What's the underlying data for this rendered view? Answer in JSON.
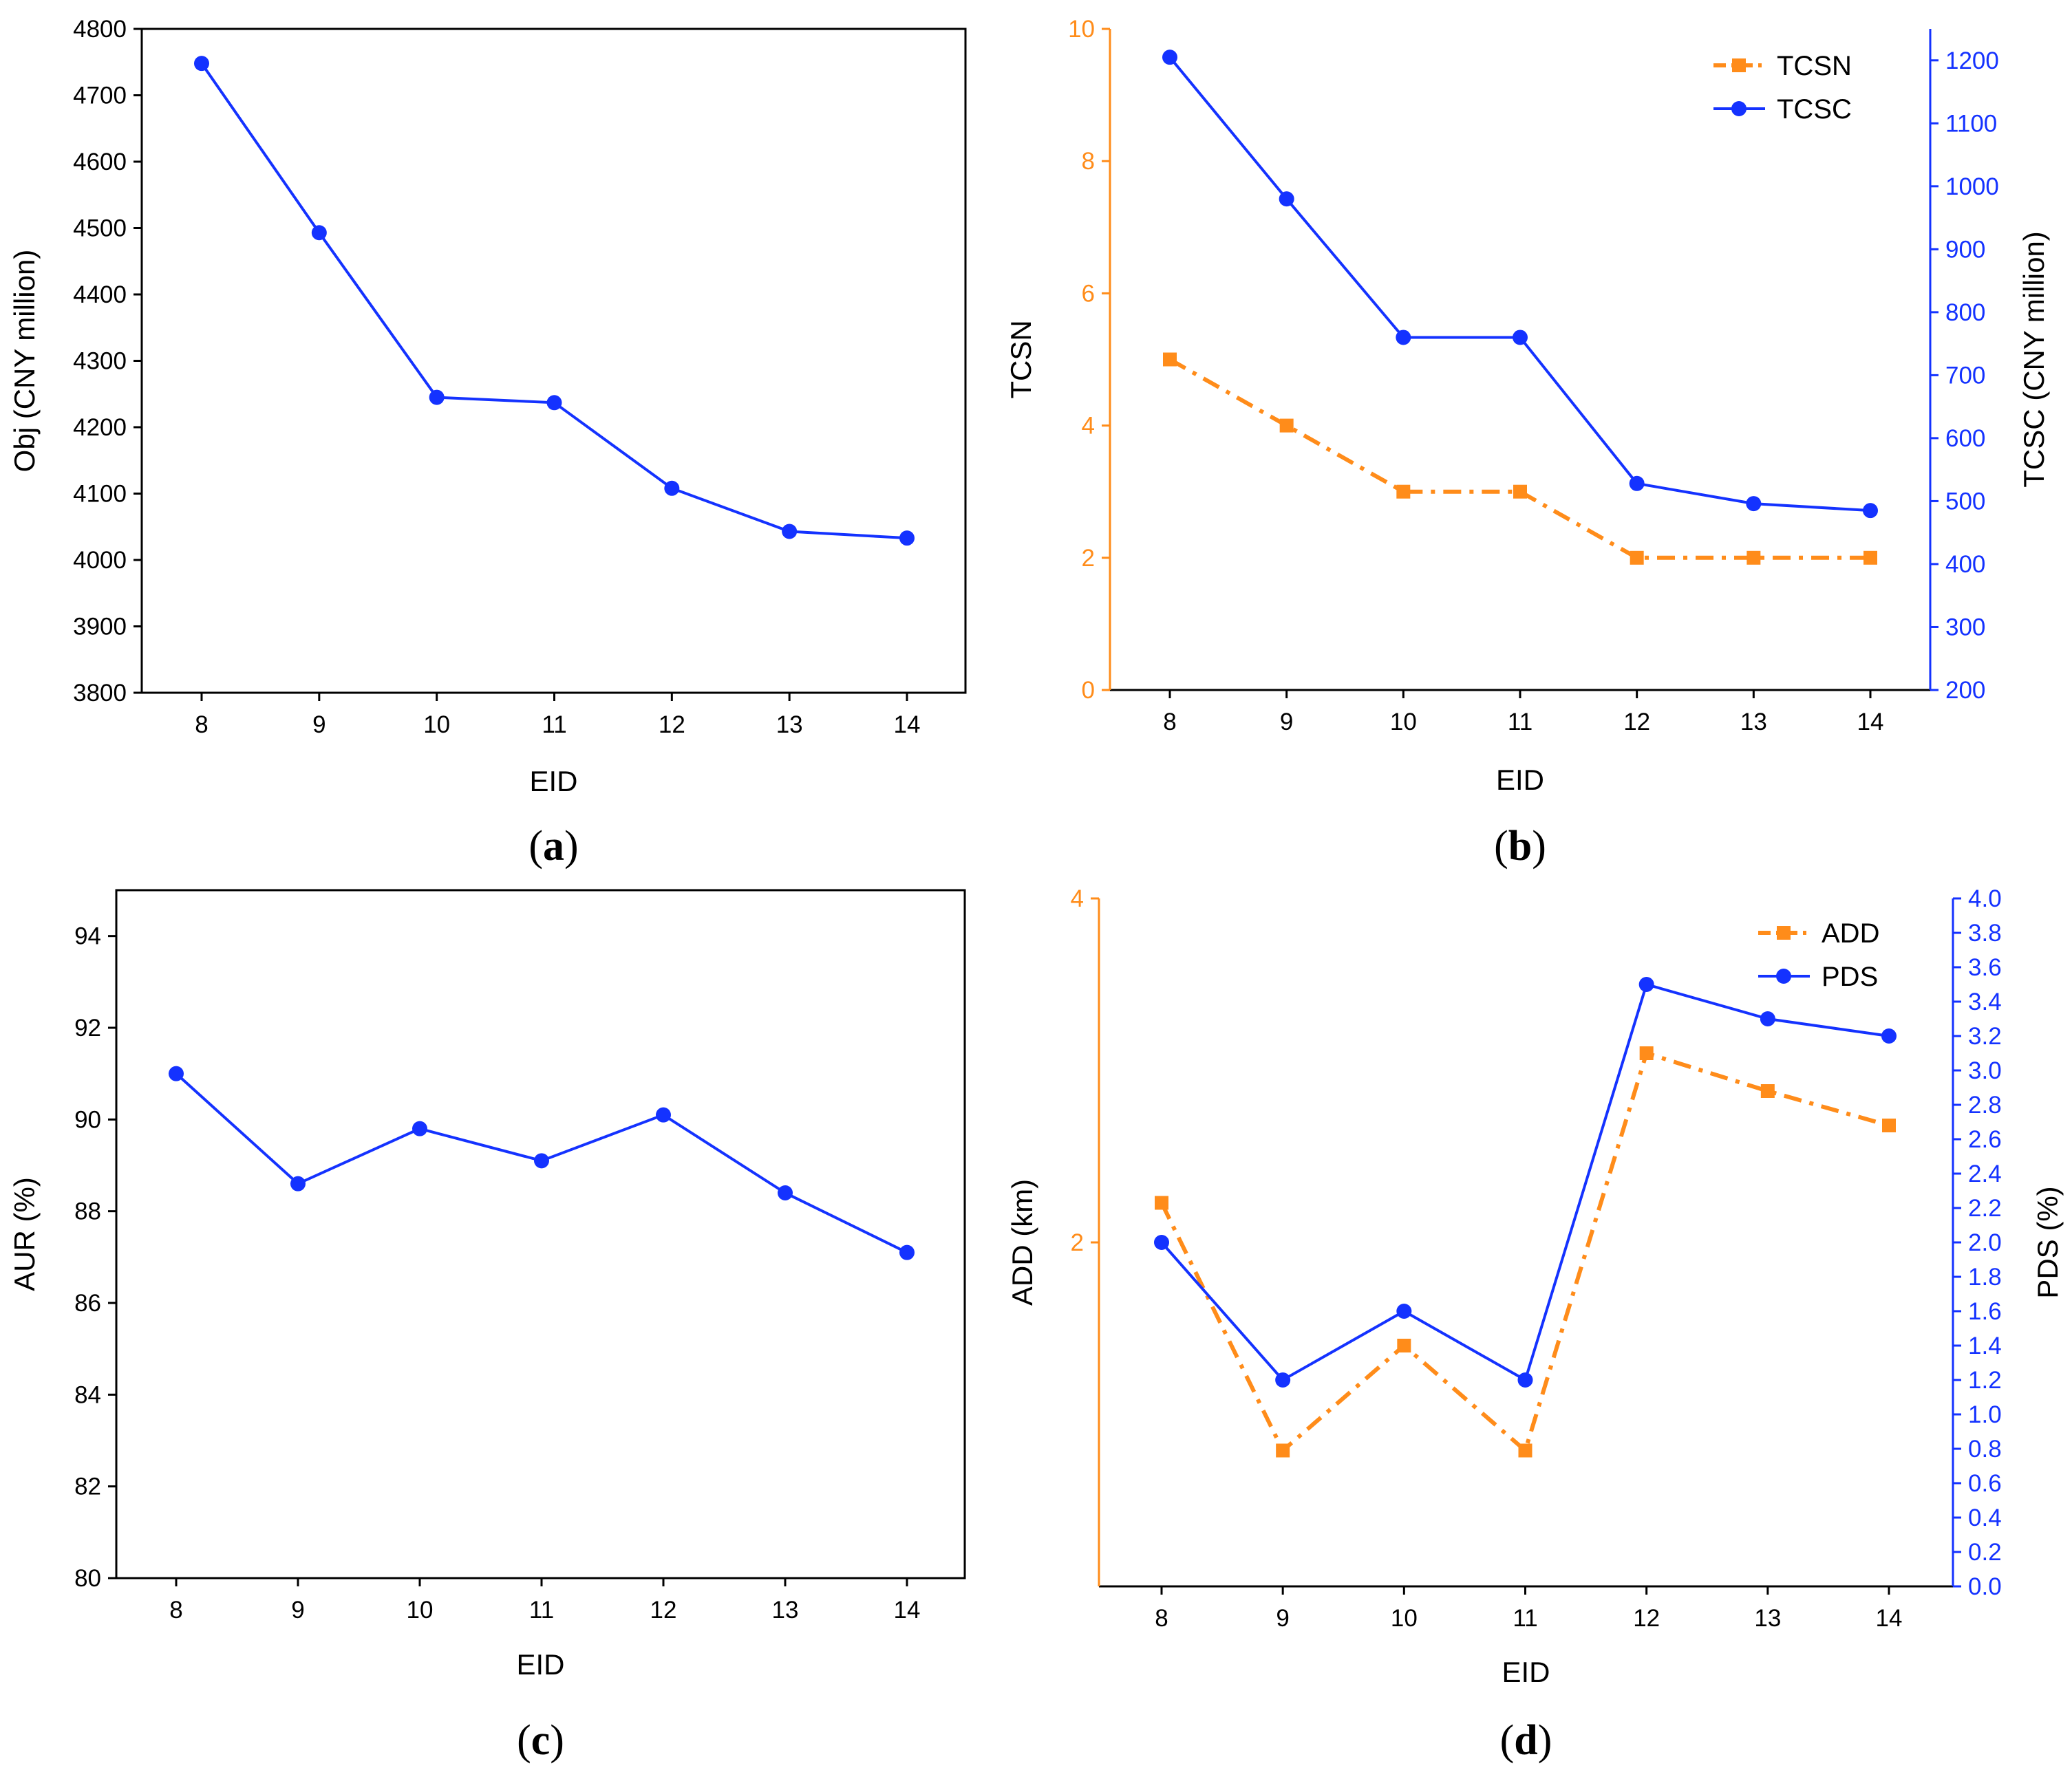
{
  "colors": {
    "orange": "#ff8c1a",
    "blue": "#1432ff",
    "black": "#000000"
  },
  "chart_data": [
    {
      "id": "a",
      "type": "line",
      "panel_label": {
        "open": "(",
        "letter": "a",
        "close": ")"
      },
      "xlabel": "EID",
      "categories": [
        "8",
        "9",
        "10",
        "11",
        "12",
        "13",
        "14"
      ],
      "ylabel": "Obj (CNY million)",
      "ylim": [
        3800,
        4800
      ],
      "yticks": [
        3800,
        3900,
        4000,
        4100,
        4200,
        4300,
        4400,
        4500,
        4600,
        4700,
        4800
      ],
      "series": [
        {
          "name": "Obj",
          "axis": "left",
          "color": "#1432ff",
          "marker": "circle",
          "style": "solid",
          "values": [
            4748,
            4493,
            4245,
            4237,
            4108,
            4043,
            4033
          ]
        }
      ]
    },
    {
      "id": "b",
      "type": "line",
      "panel_label": {
        "open": "(",
        "letter": "b",
        "close": ")"
      },
      "xlabel": "EID",
      "categories": [
        "8",
        "9",
        "10",
        "11",
        "12",
        "13",
        "14"
      ],
      "ylabel": "TCSN",
      "ylim": [
        0,
        10
      ],
      "yticks": [
        0,
        2,
        4,
        6,
        8,
        10
      ],
      "ylabel_right": "TCSC (CNY million)",
      "ylim_right": [
        200,
        1250
      ],
      "yticks_right": [
        200,
        300,
        400,
        500,
        600,
        700,
        800,
        900,
        1000,
        1100,
        1200
      ],
      "legend_position": "top-right",
      "series": [
        {
          "name": "TCSN",
          "axis": "left",
          "color": "#ff8c1a",
          "marker": "square",
          "style": "dashdot",
          "values": [
            5,
            4,
            3,
            3,
            2,
            2,
            2
          ]
        },
        {
          "name": "TCSC",
          "axis": "right",
          "color": "#1432ff",
          "marker": "circle",
          "style": "solid",
          "values": [
            1205,
            980,
            760,
            760,
            528,
            496,
            485
          ]
        }
      ]
    },
    {
      "id": "c",
      "type": "line",
      "panel_label": {
        "open": "(",
        "letter": "c",
        "close": ")"
      },
      "xlabel": "EID",
      "categories": [
        "8",
        "9",
        "10",
        "11",
        "12",
        "13",
        "14"
      ],
      "ylabel": "AUR (%)",
      "ylim": [
        80,
        95
      ],
      "yticks": [
        80,
        82,
        84,
        86,
        88,
        90,
        92,
        94
      ],
      "series": [
        {
          "name": "AUR",
          "axis": "left",
          "color": "#1432ff",
          "marker": "circle",
          "style": "solid",
          "values": [
            91.0,
            88.6,
            89.8,
            89.1,
            90.1,
            88.4,
            87.1
          ]
        }
      ]
    },
    {
      "id": "d",
      "type": "line",
      "panel_label": {
        "open": "(",
        "letter": "d",
        "close": ")"
      },
      "xlabel": "EID",
      "categories": [
        "8",
        "9",
        "10",
        "11",
        "12",
        "13",
        "14"
      ],
      "ylabel": "ADD (km)",
      "ylim": [
        0,
        4
      ],
      "yticks": [
        2,
        4
      ],
      "ylabel_right": "PDS (%)",
      "ylim_right": [
        0,
        4.0
      ],
      "yticks_right": [
        "0.0",
        "0.2",
        "0.4",
        "0.6",
        "0.8",
        "1.0",
        "1.2",
        "1.4",
        "1.6",
        "1.8",
        "2.0",
        "2.2",
        "2.4",
        "2.6",
        "2.8",
        "3.0",
        "3.2",
        "3.4",
        "3.6",
        "3.8",
        "4.0"
      ],
      "legend_position": "top-right",
      "series": [
        {
          "name": "ADD",
          "axis": "left",
          "color": "#ff8c1a",
          "marker": "square",
          "style": "dashdot",
          "values": [
            2.23,
            0.79,
            1.4,
            0.79,
            3.1,
            2.88,
            2.68
          ]
        },
        {
          "name": "PDS",
          "axis": "right",
          "color": "#1432ff",
          "marker": "circle",
          "style": "solid",
          "values": [
            2.0,
            1.2,
            1.6,
            1.2,
            3.5,
            3.3,
            3.2
          ]
        }
      ]
    }
  ]
}
